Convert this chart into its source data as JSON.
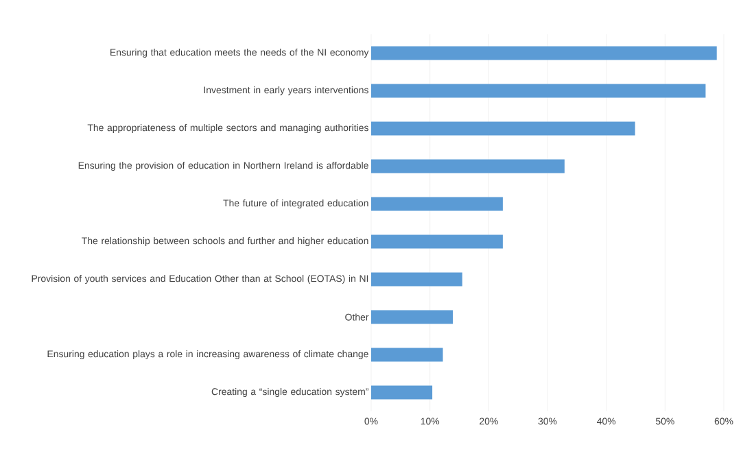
{
  "chart_data": {
    "type": "bar",
    "orientation": "horizontal",
    "color": "#5b9bd5",
    "grid": "x",
    "categories": [
      "Ensuring that education meets the needs of the NI economy",
      "Investment in early years interventions",
      "The appropriateness of multiple sectors and managing authorities",
      "Ensuring the provision of education in Northern Ireland is affordable",
      "The future of integrated education",
      "The relationship between schools and further and higher education",
      "Provision of youth services and Education Other than at School (EOTAS) in NI",
      "Other",
      "Ensuring education plays a role in increasing awareness of climate change",
      "Creating a “single education system”"
    ],
    "values": [
      58.8,
      56.9,
      44.9,
      32.9,
      22.4,
      22.4,
      15.5,
      13.9,
      12.2,
      10.4
    ],
    "xlim": [
      0,
      60
    ],
    "xticks": [
      {
        "value": 0,
        "label": "0%"
      },
      {
        "value": 10,
        "label": "10%"
      },
      {
        "value": 20,
        "label": "20%"
      },
      {
        "value": 30,
        "label": "30%"
      },
      {
        "value": 40,
        "label": "40%"
      },
      {
        "value": 50,
        "label": "50%"
      },
      {
        "value": 60,
        "label": "60%"
      }
    ]
  }
}
